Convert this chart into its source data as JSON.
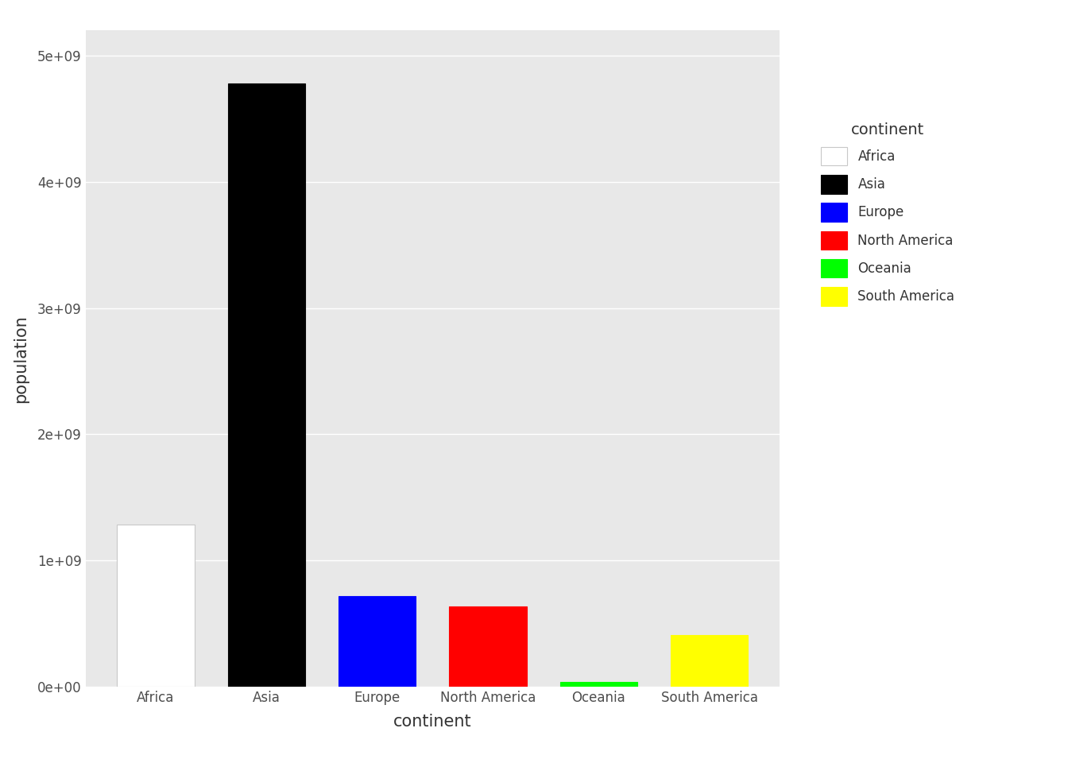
{
  "categories": [
    "Africa",
    "Asia",
    "Europe",
    "North America",
    "Oceania",
    "South America"
  ],
  "values": [
    1287920000,
    4778000000,
    720959000,
    634000000,
    35000000,
    410000000
  ],
  "colors": [
    "#ffffff",
    "#000000",
    "#0000ff",
    "#ff0000",
    "#00ff00",
    "#ffff00"
  ],
  "bar_edge_colors": [
    "#c8c8c8",
    "#000000",
    "#0000ff",
    "#ff0000",
    "#00ff00",
    "#ffff00"
  ],
  "xlabel": "continent",
  "ylabel": "population",
  "legend_title": "continent",
  "legend_labels": [
    "Africa",
    "Asia",
    "Europe",
    "North America",
    "Oceania",
    "South America"
  ],
  "legend_colors": [
    "#ffffff",
    "#000000",
    "#0000ff",
    "#ff0000",
    "#00ff00",
    "#ffff00"
  ],
  "legend_edge_colors": [
    "#c8c8c8",
    "#000000",
    "#0000ff",
    "#ff0000",
    "#00ff00",
    "#ffff00"
  ],
  "ylim_max": 5200000000,
  "yticks": [
    0,
    1000000000,
    2000000000,
    3000000000,
    4000000000,
    5000000000
  ],
  "ytick_labels": [
    "0e+00",
    "1e+09",
    "2e+09",
    "3e+09",
    "4e+09",
    "5e+09"
  ],
  "panel_background": "#e8e8e8",
  "fig_background": "#ffffff",
  "grid_color": "#ffffff",
  "axis_text_color": "#4d4d4d",
  "axis_label_color": "#333333",
  "legend_title_color": "#333333",
  "legend_text_color": "#333333",
  "bar_width": 0.7,
  "axis_title_fontsize": 15,
  "axis_text_fontsize": 12,
  "legend_title_fontsize": 14,
  "legend_text_fontsize": 12
}
